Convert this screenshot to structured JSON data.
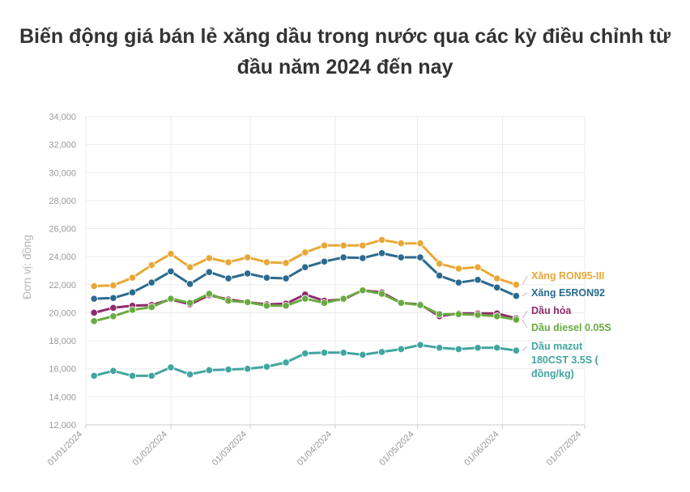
{
  "title": "Biến động giá bán lẻ xăng dầu trong nước qua các kỳ điều chỉnh từ đầu năm 2024 đến nay",
  "chart_data": {
    "type": "line",
    "ylabel": "Đơn vị: đồng",
    "xlabel": "",
    "ylim": [
      12000,
      34000
    ],
    "yticks": [
      "12,000",
      "14,000",
      "16,000",
      "18,000",
      "20,000",
      "22,000",
      "24,000",
      "26,000",
      "28,000",
      "30,000",
      "32,000",
      "34,000"
    ],
    "xlim": [
      "2024-01-01",
      "2024-07-01"
    ],
    "xticks": [
      "01/01/2024",
      "01/02/2024",
      "01/03/2024",
      "01/04/2024",
      "01/05/2024",
      "01/06/2024",
      "01/07/2024"
    ],
    "grid": true,
    "legend": "right",
    "dates": [
      "2024-01-04",
      "2024-01-11",
      "2024-01-18",
      "2024-01-25",
      "2024-02-01",
      "2024-02-08",
      "2024-02-15",
      "2024-02-22",
      "2024-02-29",
      "2024-03-07",
      "2024-03-14",
      "2024-03-21",
      "2024-03-28",
      "2024-04-04",
      "2024-04-11",
      "2024-04-18",
      "2024-04-25",
      "2024-05-02",
      "2024-05-09",
      "2024-05-16",
      "2024-05-23",
      "2024-05-30",
      "2024-06-06"
    ],
    "series": [
      {
        "name": "Xăng RON95-III",
        "color": "#e8a838",
        "values": [
          21900,
          21950,
          22500,
          23400,
          24200,
          23250,
          23900,
          23600,
          23950,
          23600,
          23550,
          24300,
          24800,
          24800,
          24800,
          25200,
          24950,
          24950,
          23500,
          23150,
          23250,
          22450,
          22000
        ]
      },
      {
        "name": "Xăng E5RON92",
        "color": "#2b6a8e",
        "values": [
          21000,
          21050,
          21450,
          22150,
          22950,
          22050,
          22900,
          22450,
          22800,
          22500,
          22450,
          23250,
          23650,
          23950,
          23900,
          24250,
          23950,
          23950,
          22650,
          22150,
          22350,
          21800,
          21200
        ]
      },
      {
        "name": "Dầu hỏa",
        "color": "#8e2c6b",
        "values": [
          20000,
          20350,
          20500,
          20550,
          20950,
          20600,
          21250,
          20950,
          20750,
          20600,
          20650,
          21300,
          20850,
          20950,
          21600,
          21450,
          20700,
          20600,
          19750,
          19950,
          19950,
          19950,
          19600
        ]
      },
      {
        "name": "Dầu diesel 0.05S",
        "color": "#6aaa42",
        "values": [
          19400,
          19750,
          20200,
          20400,
          21000,
          20700,
          21350,
          20850,
          20750,
          20500,
          20500,
          21000,
          20700,
          21000,
          21600,
          21350,
          20700,
          20550,
          19900,
          19900,
          19850,
          19750,
          19500
        ]
      },
      {
        "name": "Dầu mazut 180CST 3.5S ( đồng/kg)",
        "color": "#41a5a0",
        "values": [
          15500,
          15850,
          15500,
          15500,
          16100,
          15600,
          15900,
          15950,
          16000,
          16150,
          16450,
          17100,
          17150,
          17150,
          17000,
          17200,
          17400,
          17700,
          17500,
          17400,
          17500,
          17500,
          17300
        ]
      }
    ]
  }
}
